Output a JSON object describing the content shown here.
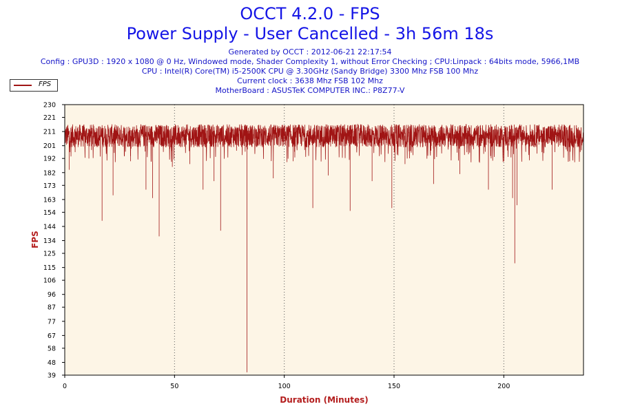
{
  "header": {
    "title": "OCCT 4.2.0 - FPS",
    "subtitle": "Power Supply - User Cancelled - 3h 56m 18s",
    "info_lines": [
      "Generated by OCCT : 2012-06-21 22:17:54",
      "Config : GPU3D : 1920 x 1080 @ 0 Hz, Windowed mode, Shader Complexity 1, without Error Checking ; CPU:Linpack : 64bits mode, 5966,1MB",
      "CPU : Intel(R) Core(TM) i5-2500K CPU @ 3.30GHz (Sandy Bridge) 3300 Mhz FSB 100 Mhz",
      "Current clock : 3638 Mhz FSB 102 Mhz",
      "MotherBoard : ASUSTeK COMPUTER INC.: P8Z77-V"
    ]
  },
  "legend": {
    "label": "FPS",
    "position": "top-left"
  },
  "colors": {
    "series": "#a01414",
    "plot_background": "#fdf5e6",
    "title": "#1414e6",
    "axis_label": "#b41e1e"
  },
  "chart_data": {
    "type": "line",
    "xlabel": "Duration (Minutes)",
    "ylabel": "FPS",
    "xlim": [
      0,
      236.3
    ],
    "ylim": [
      39,
      230
    ],
    "x_ticks": [
      0,
      50,
      100,
      150,
      200
    ],
    "y_ticks": [
      230,
      221,
      211,
      201,
      192,
      182,
      173,
      163,
      154,
      144,
      134,
      125,
      115,
      106,
      96,
      87,
      77,
      67,
      58,
      48,
      39
    ],
    "grid": "vertical dotted",
    "series": [
      {
        "name": "FPS",
        "baseline": {
          "min": 199,
          "max": 217,
          "typical": 208
        },
        "notable_dips": [
          {
            "x": 2,
            "y": 184
          },
          {
            "x": 11,
            "y": 192
          },
          {
            "x": 17,
            "y": 148
          },
          {
            "x": 22,
            "y": 166
          },
          {
            "x": 30,
            "y": 190
          },
          {
            "x": 37,
            "y": 170
          },
          {
            "x": 40,
            "y": 164
          },
          {
            "x": 43,
            "y": 137
          },
          {
            "x": 49,
            "y": 186
          },
          {
            "x": 57,
            "y": 188
          },
          {
            "x": 63,
            "y": 170
          },
          {
            "x": 68,
            "y": 176
          },
          {
            "x": 71,
            "y": 141
          },
          {
            "x": 83,
            "y": 41
          },
          {
            "x": 95,
            "y": 178
          },
          {
            "x": 104,
            "y": 190
          },
          {
            "x": 113,
            "y": 157
          },
          {
            "x": 120,
            "y": 180
          },
          {
            "x": 130,
            "y": 155
          },
          {
            "x": 140,
            "y": 176
          },
          {
            "x": 149,
            "y": 157
          },
          {
            "x": 155,
            "y": 188
          },
          {
            "x": 168,
            "y": 174
          },
          {
            "x": 180,
            "y": 181
          },
          {
            "x": 193,
            "y": 170
          },
          {
            "x": 204,
            "y": 164
          },
          {
            "x": 205,
            "y": 118
          },
          {
            "x": 206,
            "y": 159
          },
          {
            "x": 222,
            "y": 170
          },
          {
            "x": 230,
            "y": 190
          }
        ]
      }
    ]
  }
}
